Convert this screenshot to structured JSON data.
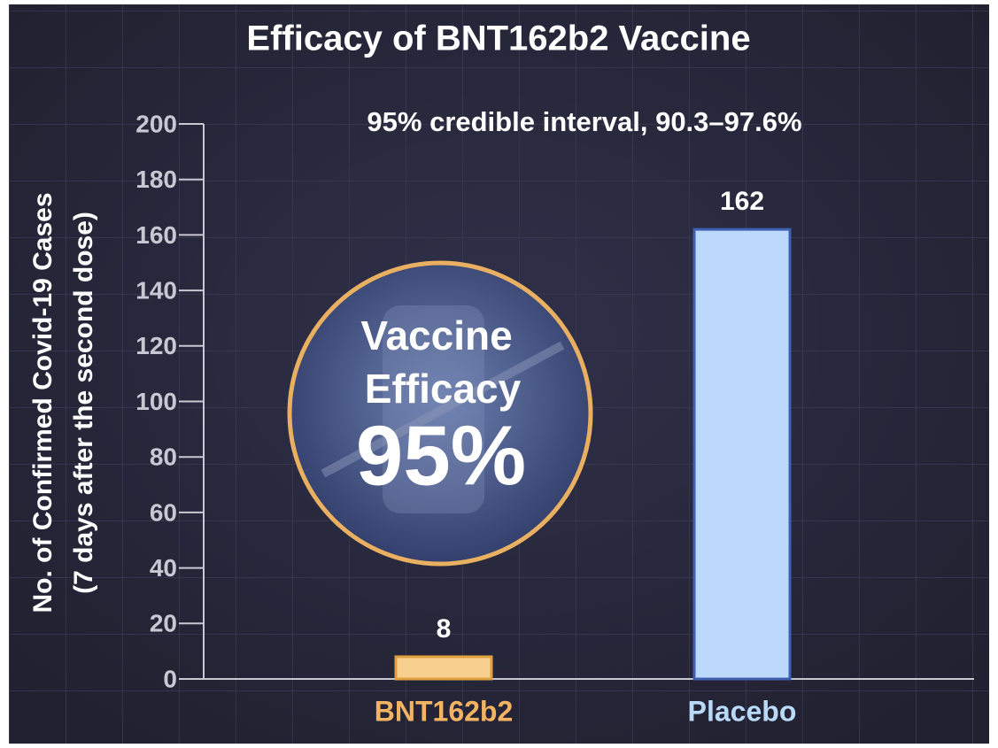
{
  "chart_data": {
    "type": "bar",
    "title": "Efficacy of BNT162b2 Vaccine",
    "subtitle": "95% credible interval, 90.3–97.6%",
    "ylabel": [
      "No. of Confirmed Covid-19 Cases",
      "(7 days after the second dose)"
    ],
    "categories": [
      "BNT162b2",
      "Placebo"
    ],
    "values": [
      8,
      162
    ],
    "colors": [
      "#f7cf8f",
      "#bcd9fb"
    ],
    "border_colors": [
      "#e0a040",
      "#3f5fb0"
    ],
    "label_colors": [
      "#f2b463",
      "#b9d9f8"
    ],
    "ylim": [
      0,
      200
    ],
    "yticks": [
      0,
      20,
      40,
      60,
      80,
      100,
      120,
      140,
      160,
      180,
      200
    ],
    "annotation": {
      "lines": [
        "Vaccine",
        "Efficacy",
        "95%"
      ]
    }
  }
}
